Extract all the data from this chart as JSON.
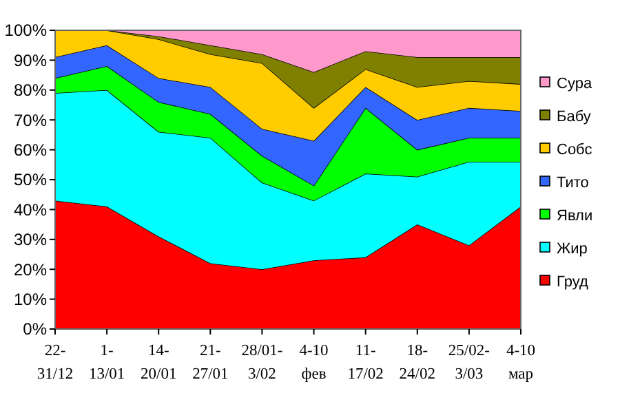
{
  "chart_data": {
    "type": "area",
    "stacked": true,
    "categories": [
      "22-\n31/12",
      "1-\n13/01",
      "14-\n20/01",
      "21-\n27/01",
      "28/01-\n3/02",
      "4-10\nфев",
      "11-\n17/02",
      "18-\n24/02",
      "25/02-\n3/03",
      "4-10\nмар"
    ],
    "ylim": [
      0,
      100
    ],
    "yticks": [
      {
        "value": 0,
        "label": "0%"
      },
      {
        "value": 10,
        "label": "10%"
      },
      {
        "value": 20,
        "label": "20%"
      },
      {
        "value": 30,
        "label": "30%"
      },
      {
        "value": 40,
        "label": "40%"
      },
      {
        "value": 50,
        "label": "50%"
      },
      {
        "value": 60,
        "label": "60%"
      },
      {
        "value": 70,
        "label": "70%"
      },
      {
        "value": 80,
        "label": "80%"
      },
      {
        "value": 90,
        "label": "90%"
      },
      {
        "value": 100,
        "label": "100%"
      }
    ],
    "legend": "right",
    "series": [
      {
        "name": "Груд",
        "color": "#ff0000",
        "values": [
          43,
          41,
          31,
          22,
          20,
          23,
          24,
          35,
          28,
          41
        ]
      },
      {
        "name": "Жир",
        "color": "#00ffff",
        "values": [
          36,
          39,
          35,
          42,
          29,
          20,
          28,
          16,
          28,
          15
        ]
      },
      {
        "name": "Явли",
        "color": "#00ff00",
        "values": [
          5,
          8,
          10,
          8,
          9,
          5,
          22,
          9,
          8,
          8
        ]
      },
      {
        "name": "Тито",
        "color": "#3366ff",
        "values": [
          7,
          7,
          8,
          9,
          9,
          15,
          7,
          10,
          10,
          9
        ]
      },
      {
        "name": "Собс",
        "color": "#ffcc00",
        "values": [
          9,
          5,
          13,
          11,
          22,
          11,
          6,
          11,
          9,
          9
        ]
      },
      {
        "name": "Бабу",
        "color": "#808000",
        "values": [
          0,
          0,
          1,
          3,
          3,
          12,
          6,
          10,
          8,
          9
        ]
      },
      {
        "name": "Сура",
        "color": "#ff99cc",
        "values": [
          0,
          0,
          2,
          5,
          8,
          14,
          7,
          9,
          9,
          9
        ]
      }
    ]
  }
}
